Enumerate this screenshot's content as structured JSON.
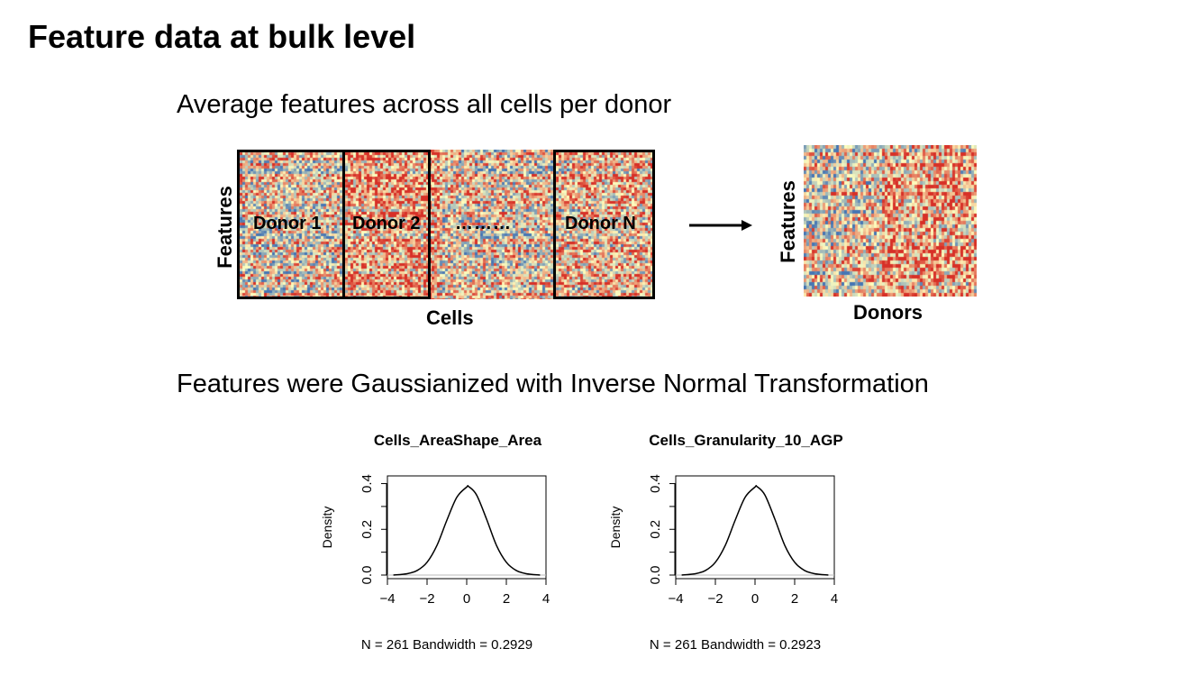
{
  "page": {
    "title": "Feature data at bulk level",
    "subtitle_avg": "Average features across all cells per donor",
    "subtitle_gauss": "Features were Gaussianized with Inverse Normal Transformation"
  },
  "diagram": {
    "cells_heatmap": {
      "y_label": "Features",
      "x_label": "Cells",
      "donors": [
        "Donor 1",
        "Donor 2",
        "Donor N"
      ],
      "ellipsis": "………"
    },
    "donor_heatmap": {
      "y_label": "Features",
      "x_label": "Donors"
    },
    "arrow_icon": "right-arrow-icon",
    "colors": {
      "low": "#4575b4",
      "mid": "#ffffbf",
      "high": "#d73027"
    }
  },
  "chart_data": [
    {
      "type": "line",
      "title": "Cells_AreaShape_Area",
      "xlabel": "N = 261   Bandwidth = 0.2929",
      "ylabel": "Density",
      "xlim": [
        -4,
        4
      ],
      "ylim": [
        0,
        0.4
      ],
      "x_ticks": [
        "−4",
        "−2",
        "0",
        "2",
        "4"
      ],
      "y_ticks": [
        "0.0",
        "0.2",
        "0.4"
      ],
      "series": [
        {
          "x": [
            -3.7,
            -3.0,
            -2.5,
            -2.0,
            -1.5,
            -1.0,
            -0.5,
            0.0,
            0.1,
            0.5,
            1.0,
            1.5,
            2.0,
            2.5,
            3.0,
            3.7
          ],
          "y": [
            0.0,
            0.006,
            0.02,
            0.056,
            0.13,
            0.24,
            0.34,
            0.385,
            0.387,
            0.35,
            0.245,
            0.13,
            0.056,
            0.02,
            0.006,
            0.0
          ]
        }
      ]
    },
    {
      "type": "line",
      "title": "Cells_Granularity_10_AGP",
      "xlabel": "N = 261   Bandwidth = 0.2923",
      "ylabel": "Density",
      "xlim": [
        -4,
        4
      ],
      "ylim": [
        0,
        0.4
      ],
      "x_ticks": [
        "−4",
        "−2",
        "0",
        "2",
        "4"
      ],
      "y_ticks": [
        "0.0",
        "0.2",
        "0.4"
      ],
      "series": [
        {
          "x": [
            -3.7,
            -3.0,
            -2.5,
            -2.0,
            -1.5,
            -1.0,
            -0.5,
            0.0,
            0.1,
            0.5,
            1.0,
            1.5,
            2.0,
            2.5,
            3.0,
            3.7
          ],
          "y": [
            0.0,
            0.006,
            0.02,
            0.056,
            0.13,
            0.24,
            0.34,
            0.385,
            0.387,
            0.35,
            0.245,
            0.13,
            0.056,
            0.02,
            0.006,
            0.0
          ]
        }
      ]
    }
  ]
}
